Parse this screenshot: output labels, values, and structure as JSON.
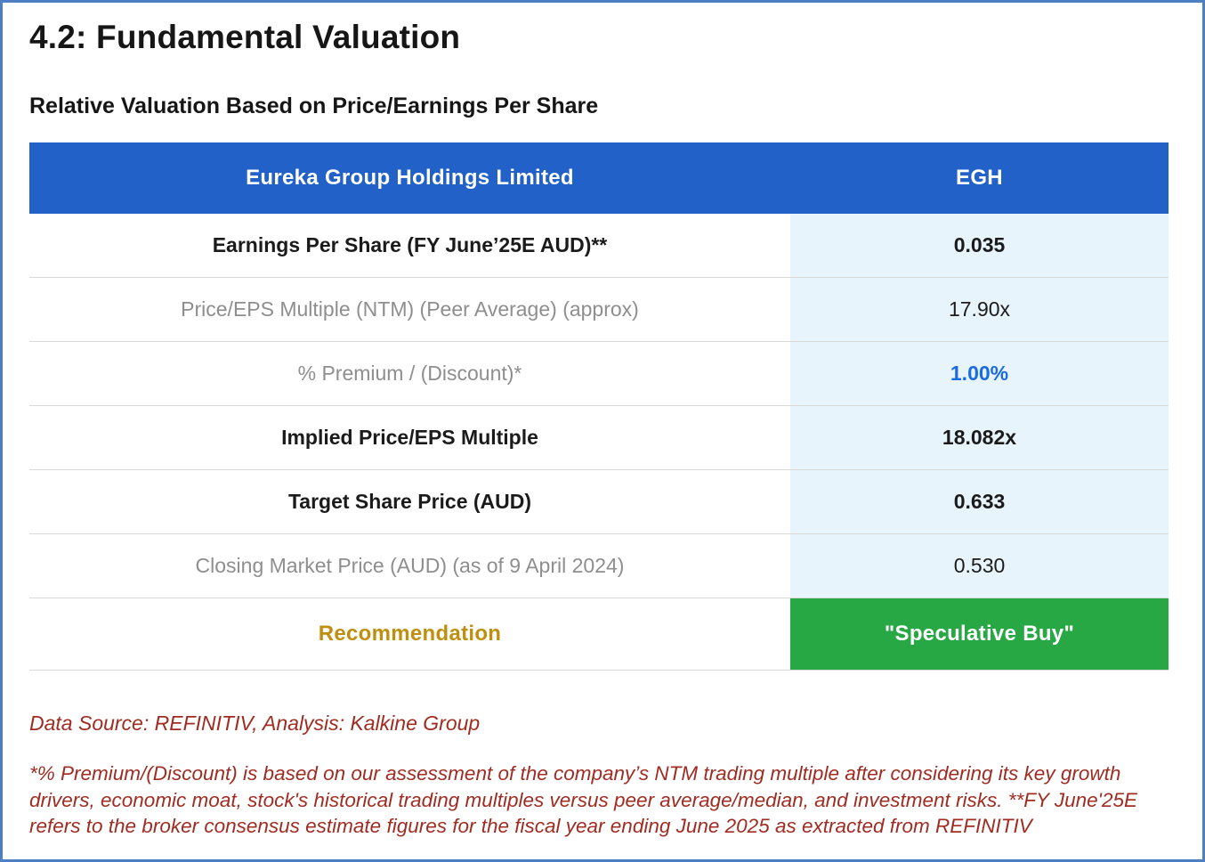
{
  "page": {
    "title": "4.2: Fundamental Valuation",
    "subtitle": "Relative Valuation Based on Price/Earnings Per Share"
  },
  "table": {
    "header": {
      "company": "Eureka Group Holdings Limited",
      "ticker": "EGH"
    },
    "rows": [
      {
        "label": "Earnings Per Share (FY June’25E AUD)**",
        "value": "0.035",
        "label_style": "bold",
        "value_style": "bold"
      },
      {
        "label": "Price/EPS Multiple (NTM) (Peer Average) (approx)",
        "value": "17.90x",
        "label_style": "muted",
        "value_style": "normal"
      },
      {
        "label": "% Premium / (Discount)*",
        "value": "1.00%",
        "label_style": "muted",
        "value_style": "blue"
      },
      {
        "label": "Implied Price/EPS Multiple",
        "value": "18.082x",
        "label_style": "bold",
        "value_style": "bold"
      },
      {
        "label": "Target Share Price (AUD)",
        "value": "0.633",
        "label_style": "bold",
        "value_style": "bold"
      },
      {
        "label": "Closing Market Price (AUD) (as of 9 April 2024)",
        "value": "0.530",
        "label_style": "muted",
        "value_style": "normal"
      },
      {
        "label": "Recommendation",
        "value": "\"Speculative Buy\"",
        "label_style": "gold",
        "value_style": "green"
      }
    ]
  },
  "footer": {
    "data_source": "Data Source: REFINITIV, Analysis: Kalkine Group",
    "footnote": "*% Premium/(Discount) is based on our assessment of the company’s NTM trading multiple after considering its key growth drivers, economic moat, stock's historical trading multiples versus peer average/median, and investment risks. **FY June'25E refers to the broker consensus estimate figures for the fiscal year ending June 2025 as extracted from REFINITIV"
  },
  "colors": {
    "header_bg": "#2161c8",
    "value_bg": "#e8f4fb",
    "recommendation_green": "#28a745",
    "premium_blue": "#1a6ae0",
    "recommendation_gold": "#bf9010",
    "footnote_red": "#a02c22"
  }
}
